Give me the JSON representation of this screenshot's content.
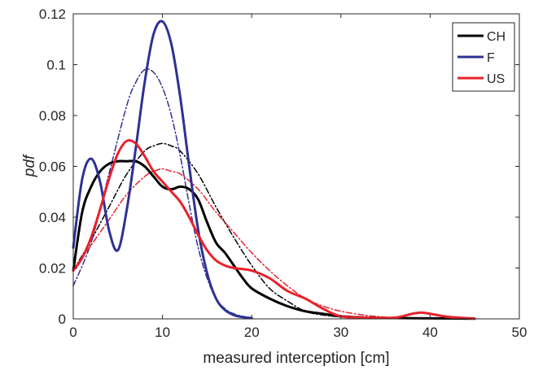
{
  "chart_data": {
    "type": "line",
    "xlabel": "measured interception [cm]",
    "ylabel": "pdf",
    "xlim": [
      0,
      50
    ],
    "ylim": [
      0,
      0.12
    ],
    "x_ticks": [
      0,
      10,
      20,
      30,
      40,
      50
    ],
    "y_ticks": [
      0,
      0.02,
      0.04,
      0.06,
      0.08,
      0.1,
      0.12
    ],
    "x_tick_labels": [
      "0",
      "10",
      "20",
      "30",
      "40",
      "50"
    ],
    "y_tick_labels": [
      "0",
      "0.02",
      "0.04",
      "0.06",
      "0.08",
      "0.1",
      "0.12"
    ],
    "grid": false,
    "legend_position": "top-right",
    "legend": [
      {
        "label": "CH",
        "color": "#000000"
      },
      {
        "label": "F",
        "color": "#2e3192"
      },
      {
        "label": "US",
        "color": "#e8212b"
      }
    ],
    "series": [
      {
        "name": "CH",
        "style": "solid",
        "color": "#000000",
        "x": [
          0,
          1,
          2,
          3,
          4,
          5,
          6,
          7,
          8,
          9,
          10,
          11,
          12,
          13,
          14,
          15,
          16,
          17,
          18,
          19,
          20,
          22,
          24,
          26,
          28,
          30,
          33,
          36,
          40,
          45
        ],
        "y": [
          0.019,
          0.042,
          0.052,
          0.058,
          0.061,
          0.062,
          0.062,
          0.062,
          0.06,
          0.056,
          0.052,
          0.051,
          0.052,
          0.051,
          0.047,
          0.038,
          0.03,
          0.026,
          0.021,
          0.016,
          0.012,
          0.008,
          0.005,
          0.003,
          0.002,
          0.001,
          0.0005,
          0.0003,
          0.0002,
          0.0001
        ]
      },
      {
        "name": "CH",
        "style": "dashdot",
        "color": "#000000",
        "x": [
          0,
          2,
          4,
          6,
          8,
          9,
          10,
          11,
          12,
          14,
          16,
          18,
          20,
          22,
          24,
          26,
          28,
          30,
          33,
          36
        ],
        "y": [
          0.019,
          0.031,
          0.044,
          0.057,
          0.066,
          0.068,
          0.069,
          0.068,
          0.066,
          0.057,
          0.044,
          0.032,
          0.021,
          0.012,
          0.007,
          0.003,
          0.0015,
          0.0008,
          0.0003,
          0.0001
        ]
      },
      {
        "name": "F",
        "style": "solid",
        "color": "#2e3192",
        "x": [
          0,
          1,
          2,
          3,
          4,
          5,
          6,
          7,
          8,
          9,
          10,
          11,
          12,
          13,
          14,
          15,
          16,
          17,
          18,
          19,
          20
        ],
        "y": [
          0.028,
          0.055,
          0.063,
          0.054,
          0.035,
          0.027,
          0.043,
          0.067,
          0.093,
          0.112,
          0.117,
          0.108,
          0.087,
          0.06,
          0.035,
          0.018,
          0.008,
          0.0035,
          0.0015,
          0.0007,
          0.0003
        ]
      },
      {
        "name": "F",
        "style": "dashdot",
        "color": "#2e3192",
        "x": [
          0,
          2,
          4,
          6,
          7,
          8,
          9,
          10,
          11,
          12,
          13,
          14,
          15,
          16,
          17,
          18,
          19,
          20
        ],
        "y": [
          0.013,
          0.03,
          0.057,
          0.084,
          0.093,
          0.098,
          0.097,
          0.091,
          0.08,
          0.064,
          0.045,
          0.028,
          0.016,
          0.008,
          0.004,
          0.002,
          0.001,
          0.0003
        ]
      },
      {
        "name": "US",
        "style": "solid",
        "color": "#e8212b",
        "x": [
          0,
          1,
          2,
          3,
          4,
          5,
          6,
          7,
          8,
          9,
          10,
          11,
          12,
          13,
          14,
          15,
          16,
          17,
          18,
          20,
          22,
          24,
          26,
          28,
          30,
          33,
          36,
          38,
          39,
          40,
          42,
          45
        ],
        "y": [
          0.019,
          0.024,
          0.032,
          0.043,
          0.055,
          0.065,
          0.07,
          0.069,
          0.064,
          0.058,
          0.054,
          0.05,
          0.046,
          0.04,
          0.033,
          0.027,
          0.023,
          0.021,
          0.02,
          0.019,
          0.016,
          0.011,
          0.008,
          0.004,
          0.001,
          0.0005,
          0.0005,
          0.002,
          0.0025,
          0.002,
          0.0008,
          0.0001
        ]
      },
      {
        "name": "US",
        "style": "dashdot",
        "color": "#e8212b",
        "x": [
          0,
          2,
          4,
          6,
          8,
          9,
          10,
          11,
          12,
          14,
          16,
          18,
          20,
          22,
          24,
          26,
          28,
          30,
          33,
          36,
          40
        ],
        "y": [
          0.019,
          0.029,
          0.039,
          0.049,
          0.056,
          0.058,
          0.059,
          0.058,
          0.057,
          0.051,
          0.042,
          0.034,
          0.026,
          0.019,
          0.013,
          0.008,
          0.005,
          0.003,
          0.0013,
          0.0005,
          0.0001
        ]
      }
    ]
  }
}
